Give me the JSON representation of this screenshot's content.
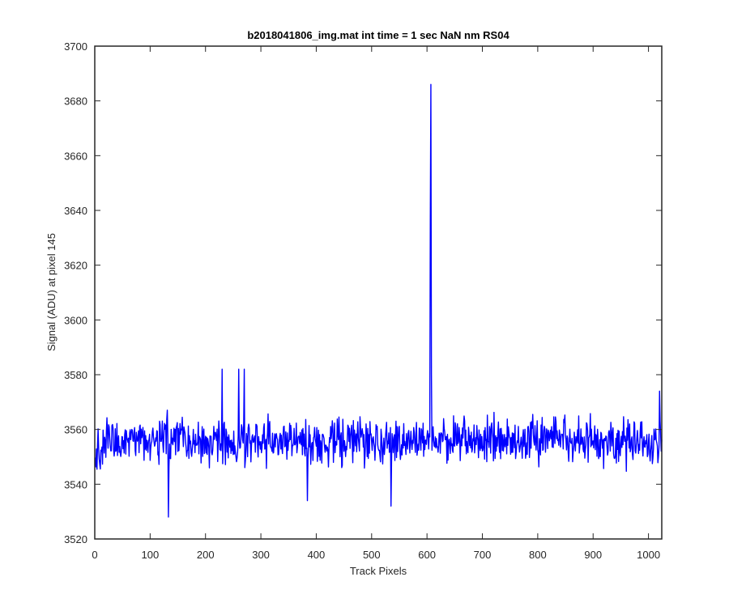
{
  "colors": {
    "series": "#0000ff",
    "axes": "#262626",
    "background": "#ffffff"
  },
  "chart_data": {
    "type": "line",
    "title": "b2018041806_img.mat int time = 1 sec  NaN nm RS04",
    "xlabel": "Track Pixels",
    "ylabel": "Signal (ADU) at pixel 145",
    "xlim": [
      0,
      1024
    ],
    "ylim": [
      3520,
      3700
    ],
    "xticks": [
      0,
      100,
      200,
      300,
      400,
      500,
      600,
      700,
      800,
      900,
      1000
    ],
    "yticks": [
      3520,
      3540,
      3560,
      3580,
      3600,
      3620,
      3640,
      3660,
      3680,
      3700
    ],
    "xtick_labels": [
      "0",
      "100",
      "200",
      "300",
      "400",
      "500",
      "600",
      "700",
      "800",
      "900",
      "1000"
    ],
    "ytick_labels": [
      "3520",
      "3540",
      "3560",
      "3580",
      "3600",
      "3620",
      "3640",
      "3660",
      "3680",
      "3700"
    ],
    "grid": false,
    "legend": "none",
    "series": [
      {
        "x_start": 1,
        "x_step": 1,
        "noise_baseline": 3556,
        "noise_halfrange": 12,
        "extremes": [
          {
            "x": 133,
            "y": 3528
          },
          {
            "x": 230,
            "y": 3582
          },
          {
            "x": 260,
            "y": 3582
          },
          {
            "x": 270,
            "y": 3582
          },
          {
            "x": 384,
            "y": 3534
          },
          {
            "x": 535,
            "y": 3532
          },
          {
            "x": 606,
            "y": 3637
          },
          {
            "x": 607,
            "y": 3686
          },
          {
            "x": 608,
            "y": 3580
          },
          {
            "x": 1020,
            "y": 3574
          }
        ]
      }
    ]
  }
}
